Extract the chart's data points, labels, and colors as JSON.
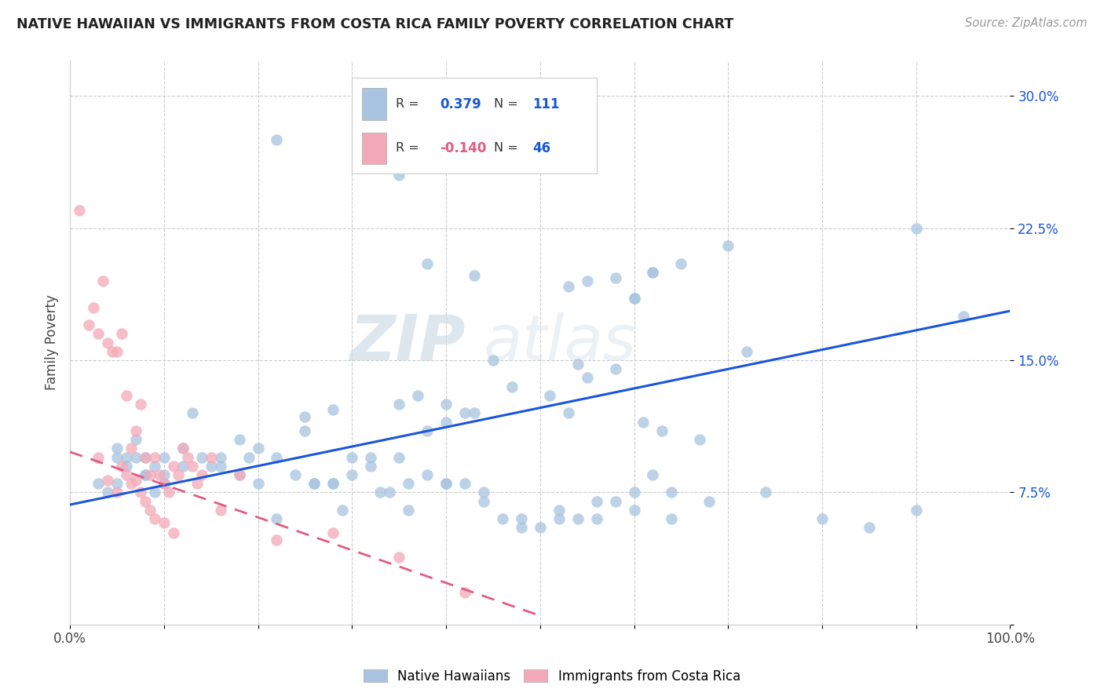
{
  "title": "NATIVE HAWAIIAN VS IMMIGRANTS FROM COSTA RICA FAMILY POVERTY CORRELATION CHART",
  "source": "Source: ZipAtlas.com",
  "ylabel": "Family Poverty",
  "xlim": [
    0.0,
    1.0
  ],
  "ylim": [
    0.0,
    0.32
  ],
  "xticks": [
    0.0,
    0.1,
    0.2,
    0.3,
    0.4,
    0.5,
    0.6,
    0.7,
    0.8,
    0.9,
    1.0
  ],
  "xticklabels": [
    "0.0%",
    "",
    "",
    "",
    "",
    "",
    "",
    "",
    "",
    "",
    "100.0%"
  ],
  "yticks": [
    0.0,
    0.075,
    0.15,
    0.225,
    0.3
  ],
  "yticklabels": [
    "",
    "7.5%",
    "15.0%",
    "22.5%",
    "30.0%"
  ],
  "blue_color": "#a8c4e0",
  "pink_color": "#f4a9b8",
  "blue_line_color": "#1a56db",
  "pink_line_color": "#e05c80",
  "legend_R_blue": "0.379",
  "legend_N_blue": "111",
  "legend_R_pink": "-0.140",
  "legend_N_pink": "46",
  "watermark_zip": "ZIP",
  "watermark_atlas": "atlas",
  "blue_scatter_x": [
    0.22,
    0.42,
    0.35,
    0.46,
    0.455,
    0.38,
    0.43,
    0.53,
    0.62,
    0.65,
    0.7,
    0.62,
    0.9,
    0.95,
    0.6,
    0.55,
    0.58,
    0.6,
    0.72,
    0.54,
    0.05,
    0.08,
    0.1,
    0.12,
    0.15,
    0.18,
    0.2,
    0.25,
    0.28,
    0.3,
    0.32,
    0.35,
    0.38,
    0.4,
    0.42,
    0.25,
    0.28,
    0.35,
    0.37,
    0.4,
    0.43,
    0.47,
    0.51,
    0.53,
    0.55,
    0.58,
    0.61,
    0.63,
    0.67,
    0.45,
    0.13,
    0.16,
    0.19,
    0.22,
    0.26,
    0.29,
    0.33,
    0.36,
    0.4,
    0.44,
    0.48,
    0.52,
    0.56,
    0.6,
    0.64,
    0.68,
    0.74,
    0.8,
    0.85,
    0.9,
    0.05,
    0.06,
    0.07,
    0.08,
    0.09,
    0.1,
    0.03,
    0.04,
    0.05,
    0.06,
    0.07,
    0.08,
    0.09,
    0.1,
    0.12,
    0.14,
    0.16,
    0.18,
    0.2,
    0.22,
    0.24,
    0.26,
    0.28,
    0.3,
    0.32,
    0.34,
    0.36,
    0.38,
    0.4,
    0.42,
    0.44,
    0.46,
    0.48,
    0.5,
    0.52,
    0.54,
    0.56,
    0.58,
    0.6,
    0.62,
    0.64
  ],
  "blue_scatter_y": [
    0.275,
    0.295,
    0.255,
    0.265,
    0.268,
    0.205,
    0.198,
    0.192,
    0.2,
    0.205,
    0.215,
    0.2,
    0.225,
    0.175,
    0.185,
    0.195,
    0.197,
    0.185,
    0.155,
    0.148,
    0.1,
    0.095,
    0.095,
    0.1,
    0.09,
    0.105,
    0.1,
    0.11,
    0.08,
    0.085,
    0.095,
    0.095,
    0.11,
    0.115,
    0.12,
    0.118,
    0.122,
    0.125,
    0.13,
    0.125,
    0.12,
    0.135,
    0.13,
    0.12,
    0.14,
    0.145,
    0.115,
    0.11,
    0.105,
    0.15,
    0.12,
    0.09,
    0.095,
    0.06,
    0.08,
    0.065,
    0.075,
    0.065,
    0.08,
    0.07,
    0.06,
    0.06,
    0.07,
    0.065,
    0.06,
    0.07,
    0.075,
    0.06,
    0.055,
    0.065,
    0.095,
    0.09,
    0.105,
    0.085,
    0.075,
    0.085,
    0.08,
    0.075,
    0.08,
    0.095,
    0.095,
    0.085,
    0.09,
    0.08,
    0.09,
    0.095,
    0.095,
    0.085,
    0.08,
    0.095,
    0.085,
    0.08,
    0.08,
    0.095,
    0.09,
    0.075,
    0.08,
    0.085,
    0.08,
    0.08,
    0.075,
    0.06,
    0.055,
    0.055,
    0.065,
    0.06,
    0.06,
    0.07,
    0.075,
    0.085,
    0.075
  ],
  "pink_scatter_x": [
    0.01,
    0.02,
    0.025,
    0.03,
    0.035,
    0.04,
    0.045,
    0.05,
    0.055,
    0.06,
    0.065,
    0.07,
    0.075,
    0.08,
    0.085,
    0.09,
    0.095,
    0.1,
    0.105,
    0.11,
    0.115,
    0.12,
    0.125,
    0.13,
    0.135,
    0.14,
    0.15,
    0.16,
    0.03,
    0.04,
    0.05,
    0.055,
    0.06,
    0.065,
    0.07,
    0.075,
    0.08,
    0.085,
    0.09,
    0.1,
    0.11,
    0.18,
    0.22,
    0.28,
    0.35,
    0.42
  ],
  "pink_scatter_y": [
    0.235,
    0.17,
    0.18,
    0.165,
    0.195,
    0.16,
    0.155,
    0.155,
    0.165,
    0.13,
    0.1,
    0.11,
    0.125,
    0.095,
    0.085,
    0.095,
    0.085,
    0.08,
    0.075,
    0.09,
    0.085,
    0.1,
    0.095,
    0.09,
    0.08,
    0.085,
    0.095,
    0.065,
    0.095,
    0.082,
    0.075,
    0.09,
    0.085,
    0.08,
    0.082,
    0.075,
    0.07,
    0.065,
    0.06,
    0.058,
    0.052,
    0.085,
    0.048,
    0.052,
    0.038,
    0.018
  ],
  "blue_line_x0": 0.0,
  "blue_line_x1": 1.0,
  "blue_line_y0": 0.068,
  "blue_line_y1": 0.178,
  "pink_line_x0": 0.0,
  "pink_line_x1": 0.5,
  "pink_line_y0": 0.098,
  "pink_line_y1": 0.005
}
